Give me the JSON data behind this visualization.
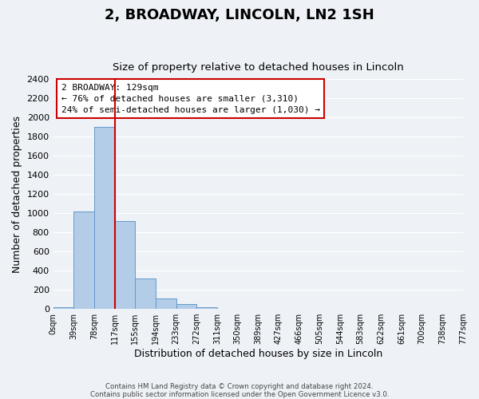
{
  "title": "2, BROADWAY, LINCOLN, LN2 1SH",
  "subtitle": "Size of property relative to detached houses in Lincoln",
  "xlabel": "Distribution of detached houses by size in Lincoln",
  "ylabel": "Number of detached properties",
  "bin_labels": [
    "0sqm",
    "39sqm",
    "78sqm",
    "117sqm",
    "155sqm",
    "194sqm",
    "233sqm",
    "272sqm",
    "311sqm",
    "350sqm",
    "389sqm",
    "427sqm",
    "466sqm",
    "505sqm",
    "544sqm",
    "583sqm",
    "622sqm",
    "661sqm",
    "700sqm",
    "738sqm",
    "777sqm"
  ],
  "bar_values": [
    20,
    1020,
    1900,
    920,
    320,
    105,
    50,
    20,
    0,
    0,
    0,
    0,
    0,
    0,
    0,
    0,
    0,
    0,
    0,
    0
  ],
  "bar_color": "#b3cce8",
  "bar_edge_color": "#6699cc",
  "ylim": [
    0,
    2400
  ],
  "yticks": [
    0,
    200,
    400,
    600,
    800,
    1000,
    1200,
    1400,
    1600,
    1800,
    2000,
    2200,
    2400
  ],
  "property_line_x": 3,
  "property_line_color": "#cc0000",
  "annotation_text": "2 BROADWAY: 129sqm\n← 76% of detached houses are smaller (3,310)\n24% of semi-detached houses are larger (1,030) →",
  "annotation_box_color": "#ffffff",
  "annotation_box_edge_color": "#cc0000",
  "footer_line1": "Contains HM Land Registry data © Crown copyright and database right 2024.",
  "footer_line2": "Contains public sector information licensed under the Open Government Licence v3.0.",
  "background_color": "#eef2f7",
  "grid_color": "#ffffff"
}
